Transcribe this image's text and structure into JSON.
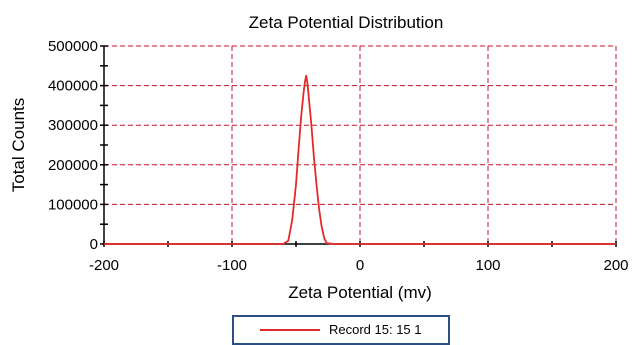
{
  "chart_data": {
    "type": "line",
    "title": "Zeta Potential Distribution",
    "xlabel": "Zeta Potential (mv)",
    "ylabel": "Total Counts",
    "xlim": [
      -200,
      200
    ],
    "ylim": [
      0,
      500000
    ],
    "x_ticks": [
      -200,
      -100,
      0,
      100,
      200
    ],
    "x_tick_labels": [
      "-200",
      "-100",
      "0",
      "100",
      "200"
    ],
    "y_ticks": [
      0,
      100000,
      200000,
      300000,
      400000,
      500000
    ],
    "y_tick_labels": [
      "0",
      "100000",
      "200000",
      "300000",
      "400000",
      "500000"
    ],
    "grid": true,
    "legend_position": "bottom-center",
    "colors": {
      "series": "#e32a2a",
      "grid": "#c0142a",
      "legend_border": "#2e4f86"
    },
    "series": [
      {
        "name": "Record 15: 15 1",
        "x": [
          -200,
          -150,
          -100,
          -70,
          -60,
          -56,
          -53,
          -50,
          -48,
          -46,
          -44,
          -43,
          -42,
          -41,
          -40,
          -38,
          -36,
          -34,
          -32,
          -30,
          -28,
          -26,
          -20,
          0,
          50,
          100,
          150,
          200
        ],
        "y": [
          0,
          0,
          0,
          0,
          0,
          8000,
          60000,
          150000,
          240000,
          320000,
          385000,
          410000,
          425000,
          405000,
          370000,
          300000,
          220000,
          150000,
          90000,
          45000,
          15000,
          2000,
          0,
          0,
          0,
          0,
          0,
          0
        ]
      }
    ]
  },
  "legend": {
    "entry": "Record 15: 15 1"
  }
}
